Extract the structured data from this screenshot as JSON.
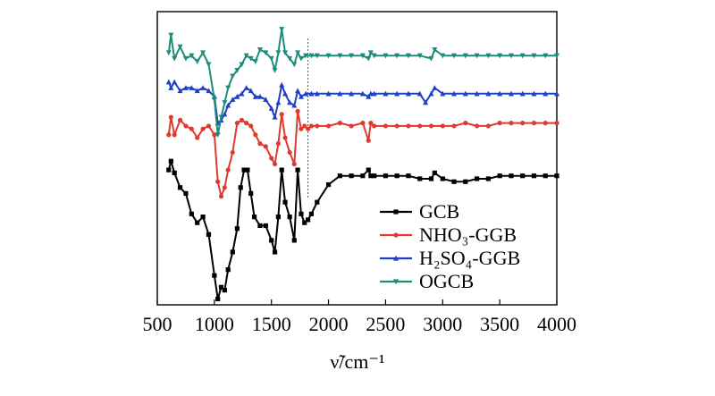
{
  "chart_data": {
    "type": "line",
    "title": "",
    "xlabel": "ν̃/cm⁻¹",
    "ylabel": "",
    "xlim": [
      500,
      4000
    ],
    "ylim": [
      0,
      100
    ],
    "xticks": [
      500,
      1000,
      1500,
      2000,
      2500,
      3000,
      3500,
      4000
    ],
    "xtick_labels": [
      "500",
      "1000",
      "1500",
      "2000",
      "2500",
      "3000",
      "3500",
      "4000"
    ],
    "legend_position": "lower-right",
    "vertical_marker_x": 1820,
    "series": [
      {
        "name": "GCB",
        "color": "#000000",
        "marker": "square",
        "x": [
          600,
          620,
          650,
          700,
          750,
          800,
          850,
          900,
          950,
          1000,
          1030,
          1060,
          1090,
          1120,
          1160,
          1200,
          1230,
          1260,
          1290,
          1320,
          1350,
          1400,
          1450,
          1500,
          1530,
          1560,
          1590,
          1620,
          1660,
          1700,
          1730,
          1760,
          1790,
          1820,
          1850,
          1900,
          2000,
          2100,
          2200,
          2300,
          2350,
          2370,
          2400,
          2500,
          2600,
          2700,
          2800,
          2900,
          2930,
          3000,
          3100,
          3200,
          3300,
          3400,
          3500,
          3600,
          3700,
          3800,
          3900,
          4000
        ],
        "y": [
          46,
          49,
          45,
          40,
          38,
          31,
          28,
          30,
          24,
          10,
          2,
          6,
          5,
          12,
          18,
          26,
          40,
          46,
          46,
          38,
          30,
          27,
          27,
          22,
          18,
          30,
          46,
          35,
          30,
          22,
          46,
          31,
          28,
          29,
          31,
          35,
          41,
          44,
          44,
          44,
          46,
          44,
          44,
          44,
          44,
          44,
          43,
          43,
          45,
          43,
          42,
          42,
          43,
          43,
          44,
          44,
          44,
          44,
          44,
          44
        ]
      },
      {
        "name": "NHO₃-GGB",
        "color": "#e03a2f",
        "marker": "circle",
        "x": [
          600,
          620,
          650,
          700,
          750,
          800,
          850,
          900,
          950,
          1000,
          1030,
          1060,
          1090,
          1120,
          1160,
          1200,
          1240,
          1280,
          1320,
          1360,
          1400,
          1450,
          1500,
          1530,
          1560,
          1590,
          1620,
          1660,
          1700,
          1730,
          1760,
          1790,
          1820,
          1850,
          1900,
          2000,
          2100,
          2200,
          2300,
          2350,
          2370,
          2400,
          2500,
          2600,
          2700,
          2800,
          2900,
          3000,
          3100,
          3200,
          3300,
          3400,
          3500,
          3600,
          3700,
          3800,
          3900,
          4000
        ],
        "y": [
          58,
          64,
          58,
          63,
          61,
          60,
          57,
          60,
          61,
          58,
          42,
          37,
          40,
          46,
          52,
          62,
          63,
          62,
          61,
          58,
          55,
          54,
          50,
          48,
          55,
          65,
          57,
          52,
          48,
          66,
          60,
          61,
          60,
          61,
          61,
          61,
          62,
          61,
          62,
          56,
          62,
          61,
          61,
          61,
          61,
          61,
          61,
          61,
          61,
          62,
          61,
          61,
          62,
          62,
          62,
          62,
          62,
          62
        ]
      },
      {
        "name": "H₂SO₄-GGB",
        "color": "#1f3fc9",
        "marker": "triangle-up",
        "x": [
          600,
          620,
          650,
          700,
          750,
          800,
          850,
          900,
          950,
          1000,
          1030,
          1060,
          1090,
          1120,
          1160,
          1200,
          1240,
          1280,
          1320,
          1360,
          1400,
          1450,
          1500,
          1530,
          1560,
          1590,
          1620,
          1660,
          1700,
          1730,
          1760,
          1800,
          1850,
          1900,
          2000,
          2100,
          2200,
          2300,
          2350,
          2370,
          2400,
          2500,
          2600,
          2700,
          2800,
          2850,
          2900,
          2930,
          3000,
          3100,
          3200,
          3300,
          3400,
          3500,
          3600,
          3700,
          3800,
          3900,
          4000
        ],
        "y": [
          76,
          74,
          76,
          73,
          74,
          74,
          73,
          74,
          73,
          71,
          62,
          63,
          65,
          68,
          70,
          71,
          72,
          74,
          73,
          71,
          71,
          70,
          67,
          64,
          69,
          75,
          72,
          69,
          68,
          73,
          71,
          72,
          72,
          72,
          72,
          72,
          72,
          72,
          71,
          72,
          72,
          72,
          72,
          72,
          72,
          69,
          72,
          74,
          72,
          72,
          72,
          72,
          72,
          72,
          72,
          72,
          72,
          72,
          72
        ]
      },
      {
        "name": "OGCB",
        "color": "#1f8c7a",
        "marker": "triangle-down",
        "x": [
          600,
          620,
          650,
          700,
          750,
          800,
          850,
          900,
          950,
          1000,
          1030,
          1060,
          1090,
          1120,
          1160,
          1200,
          1240,
          1280,
          1320,
          1360,
          1400,
          1450,
          1500,
          1530,
          1560,
          1590,
          1620,
          1660,
          1700,
          1730,
          1760,
          1800,
          1850,
          1900,
          2000,
          2100,
          2200,
          2300,
          2350,
          2370,
          2400,
          2500,
          2600,
          2700,
          2800,
          2900,
          2930,
          3000,
          3100,
          3200,
          3300,
          3400,
          3500,
          3600,
          3700,
          3800,
          3900,
          4000
        ],
        "y": [
          86,
          92,
          84,
          88,
          84,
          85,
          83,
          86,
          82,
          70,
          58,
          64,
          69,
          74,
          78,
          80,
          82,
          85,
          84,
          83,
          87,
          86,
          84,
          80,
          86,
          94,
          86,
          84,
          82,
          86,
          84,
          85,
          85,
          85,
          85,
          85,
          85,
          85,
          84,
          86,
          85,
          85,
          85,
          85,
          85,
          84,
          87,
          85,
          85,
          85,
          85,
          85,
          85,
          85,
          85,
          85,
          85,
          85
        ]
      }
    ]
  }
}
